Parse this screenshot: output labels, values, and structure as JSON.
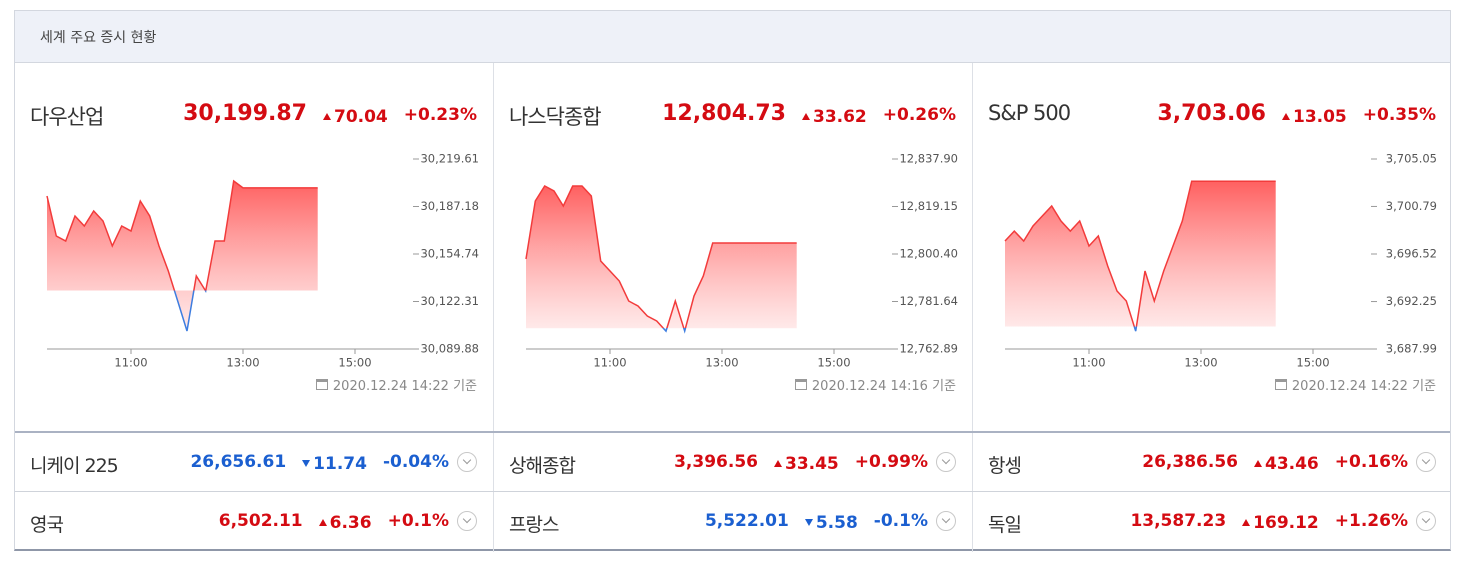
{
  "header": {
    "title": "세계 주요 증시 현황"
  },
  "colors": {
    "up": "#d40b12",
    "down": "#1b5fd0",
    "line_up": "#f23b3b",
    "line_down": "#3d7de0"
  },
  "panels": [
    {
      "name": "다우산업",
      "price": "30,199.87",
      "change": "70.04",
      "change_pct": "+0.23%",
      "updated": "2020.12.24 14:22 기준",
      "chart_data": {
        "type": "line",
        "x": [
          "09:30",
          "09:40",
          "09:50",
          "10:00",
          "10:10",
          "10:20",
          "10:30",
          "10:40",
          "10:50",
          "11:00",
          "11:10",
          "11:20",
          "11:30",
          "11:40",
          "11:50",
          "12:00",
          "12:10",
          "12:20",
          "12:30",
          "12:40",
          "12:50",
          "13:00",
          "14:20"
        ],
        "values": [
          30194.35,
          30167.03,
          30163.62,
          30180.69,
          30173.86,
          30184.1,
          30177.28,
          30160.2,
          30173.86,
          30170.45,
          30190.93,
          30180.69,
          30160.2,
          30143.14,
          30122.65,
          30102.17,
          30139.72,
          30129.48,
          30163.62,
          30163.62,
          30204.59,
          30199.87,
          30199.87
        ],
        "xlim": [
          "09:30",
          "16:00"
        ],
        "xticks": [
          "11:00",
          "13:00",
          "15:00"
        ],
        "ylim": [
          30089.88,
          30219.61
        ],
        "yticks": [
          {
            "value": 30219.61,
            "label": "30,219.61"
          },
          {
            "value": 30187.18,
            "label": "30,187.18"
          },
          {
            "value": 30154.74,
            "label": "30,154.74"
          },
          {
            "value": 30122.31,
            "label": "30,122.31"
          },
          {
            "value": 30089.88,
            "label": "30,089.88"
          }
        ]
      }
    },
    {
      "name": "나스닥종합",
      "price": "12,804.73",
      "change": "33.62",
      "change_pct": "+0.26%",
      "updated": "2020.12.24 14:16 기준",
      "chart_data": {
        "type": "line",
        "x": [
          "09:30",
          "09:40",
          "09:50",
          "10:00",
          "10:10",
          "10:20",
          "10:30",
          "10:40",
          "10:50",
          "11:00",
          "11:10",
          "11:20",
          "11:30",
          "11:40",
          "11:50",
          "12:00",
          "12:10",
          "12:20",
          "12:30",
          "12:40",
          "12:50",
          "13:00",
          "14:20"
        ],
        "values": [
          12798.42,
          12821.32,
          12827.24,
          12825.27,
          12819.34,
          12827.24,
          12827.24,
          12823.29,
          12797.63,
          12793.68,
          12789.73,
          12781.84,
          12779.86,
          12775.92,
          12773.94,
          12769.97,
          12781.84,
          12769.97,
          12783.81,
          12791.71,
          12804.73,
          12804.73,
          12804.73
        ],
        "xlim": [
          "09:30",
          "16:00"
        ],
        "xticks": [
          "11:00",
          "13:00",
          "15:00"
        ],
        "ylim": [
          12762.89,
          12837.9
        ],
        "yticks": [
          {
            "value": 12837.9,
            "label": "12,837.90"
          },
          {
            "value": 12819.15,
            "label": "12,819.15"
          },
          {
            "value": 12800.4,
            "label": "12,800.40"
          },
          {
            "value": 12781.64,
            "label": "12,781.64"
          },
          {
            "value": 12762.89,
            "label": "12,762.89"
          }
        ]
      }
    },
    {
      "name": "S&P 500",
      "price": "3,703.06",
      "change": "13.05",
      "change_pct": "+0.35%",
      "updated": "2020.12.24 14:22 기준",
      "chart_data": {
        "type": "line",
        "x": [
          "09:30",
          "09:40",
          "09:50",
          "10:00",
          "10:10",
          "10:20",
          "10:30",
          "10:40",
          "10:50",
          "11:00",
          "11:10",
          "11:20",
          "11:30",
          "11:40",
          "11:50",
          "12:00",
          "12:10",
          "12:20",
          "12:30",
          "12:40",
          "12:50",
          "13:00",
          "14:20"
        ],
        "values": [
          3697.69,
          3698.58,
          3697.69,
          3699.03,
          3699.93,
          3700.83,
          3699.48,
          3698.58,
          3699.48,
          3697.24,
          3698.14,
          3695.44,
          3693.2,
          3692.3,
          3689.6,
          3694.99,
          3692.3,
          3694.99,
          3697.24,
          3699.48,
          3703.06,
          3703.06,
          3703.06
        ],
        "xlim": [
          "09:30",
          "16:00"
        ],
        "xticks": [
          "11:00",
          "13:00",
          "15:00"
        ],
        "ylim": [
          3687.99,
          3705.05
        ],
        "yticks": [
          {
            "value": 3705.05,
            "label": "3,705.05"
          },
          {
            "value": 3700.79,
            "label": "3,700.79"
          },
          {
            "value": 3696.52,
            "label": "3,696.52"
          },
          {
            "value": 3692.25,
            "label": "3,692.25"
          },
          {
            "value": 3687.99,
            "label": "3,687.99"
          }
        ]
      }
    }
  ],
  "rows": [
    [
      {
        "name": "니케이 225",
        "price": "26,656.61",
        "change": "11.74",
        "change_pct": "-0.04%"
      },
      {
        "name": "상해종합",
        "price": "3,396.56",
        "change": "33.45",
        "change_pct": "+0.99%"
      },
      {
        "name": "항셍",
        "price": "26,386.56",
        "change": "43.46",
        "change_pct": "+0.16%"
      }
    ],
    [
      {
        "name": "영국",
        "price": "6,502.11",
        "change": "6.36",
        "change_pct": "+0.1%"
      },
      {
        "name": "프랑스",
        "price": "5,522.01",
        "change": "5.58",
        "change_pct": "-0.1%"
      },
      {
        "name": "독일",
        "price": "13,587.23",
        "change": "169.12",
        "change_pct": "+1.26%"
      }
    ]
  ]
}
